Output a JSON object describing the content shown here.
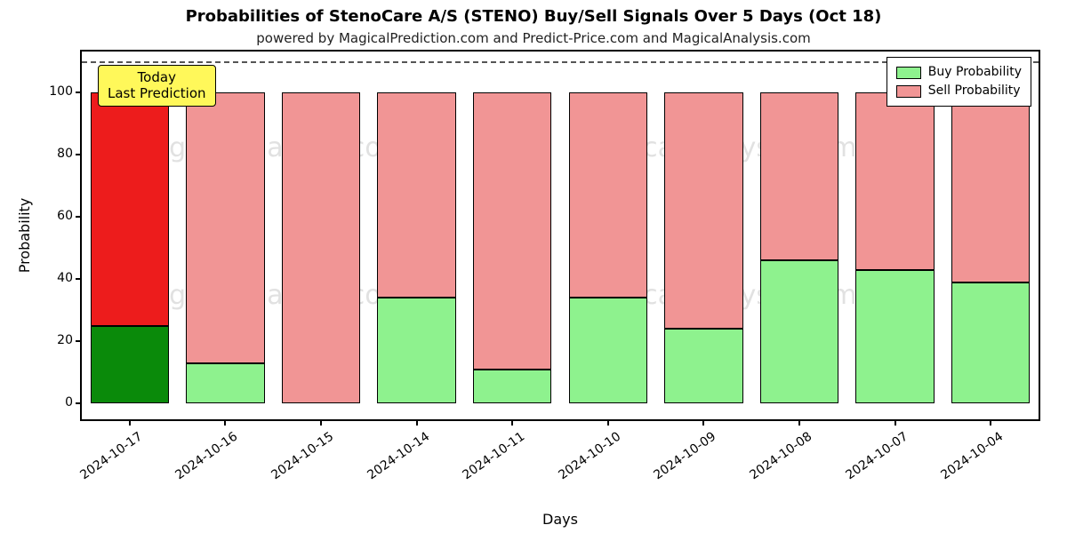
{
  "title": "Probabilities of StenoCare A/S (STENO) Buy/Sell Signals Over 5 Days (Oct 18)",
  "subtitle": "powered by MagicalPrediction.com and Predict-Price.com and MagicalAnalysis.com",
  "axis": {
    "ylabel": "Probability",
    "xlabel": "Days",
    "ylim_min": -5,
    "ylim_max": 113,
    "yticks": [
      0,
      20,
      40,
      60,
      80,
      100
    ],
    "refline_value": 110,
    "refline_color": "#555555",
    "border_color": "#000000",
    "background_color": "#ffffff"
  },
  "bar_style": {
    "width_ratio": 0.82,
    "slot_count": 10
  },
  "colors": {
    "buy": "#8ef28e",
    "sell": "#f19595",
    "buy_today": "#0a8a0a",
    "sell_today": "#ed1c1c",
    "bar_edge": "#000000"
  },
  "legend": {
    "items": [
      {
        "label": "Buy Probability",
        "color": "#8ef28e"
      },
      {
        "label": "Sell Probability",
        "color": "#f19595"
      }
    ]
  },
  "today_annotation": {
    "line1": "Today",
    "line2": "Last Prediction",
    "target_index": 0
  },
  "watermark_text": "MagicalAnalysis.com",
  "data": [
    {
      "day": "2024-10-17",
      "buy": 25,
      "sell": 75,
      "is_today": true
    },
    {
      "day": "2024-10-16",
      "buy": 13,
      "sell": 87,
      "is_today": false
    },
    {
      "day": "2024-10-15",
      "buy": 0,
      "sell": 100,
      "is_today": false
    },
    {
      "day": "2024-10-14",
      "buy": 34,
      "sell": 66,
      "is_today": false
    },
    {
      "day": "2024-10-11",
      "buy": 11,
      "sell": 89,
      "is_today": false
    },
    {
      "day": "2024-10-10",
      "buy": 34,
      "sell": 66,
      "is_today": false
    },
    {
      "day": "2024-10-09",
      "buy": 24,
      "sell": 76,
      "is_today": false
    },
    {
      "day": "2024-10-08",
      "buy": 46,
      "sell": 54,
      "is_today": false
    },
    {
      "day": "2024-10-07",
      "buy": 43,
      "sell": 57,
      "is_today": false
    },
    {
      "day": "2024-10-04",
      "buy": 39,
      "sell": 61,
      "is_today": false
    }
  ]
}
